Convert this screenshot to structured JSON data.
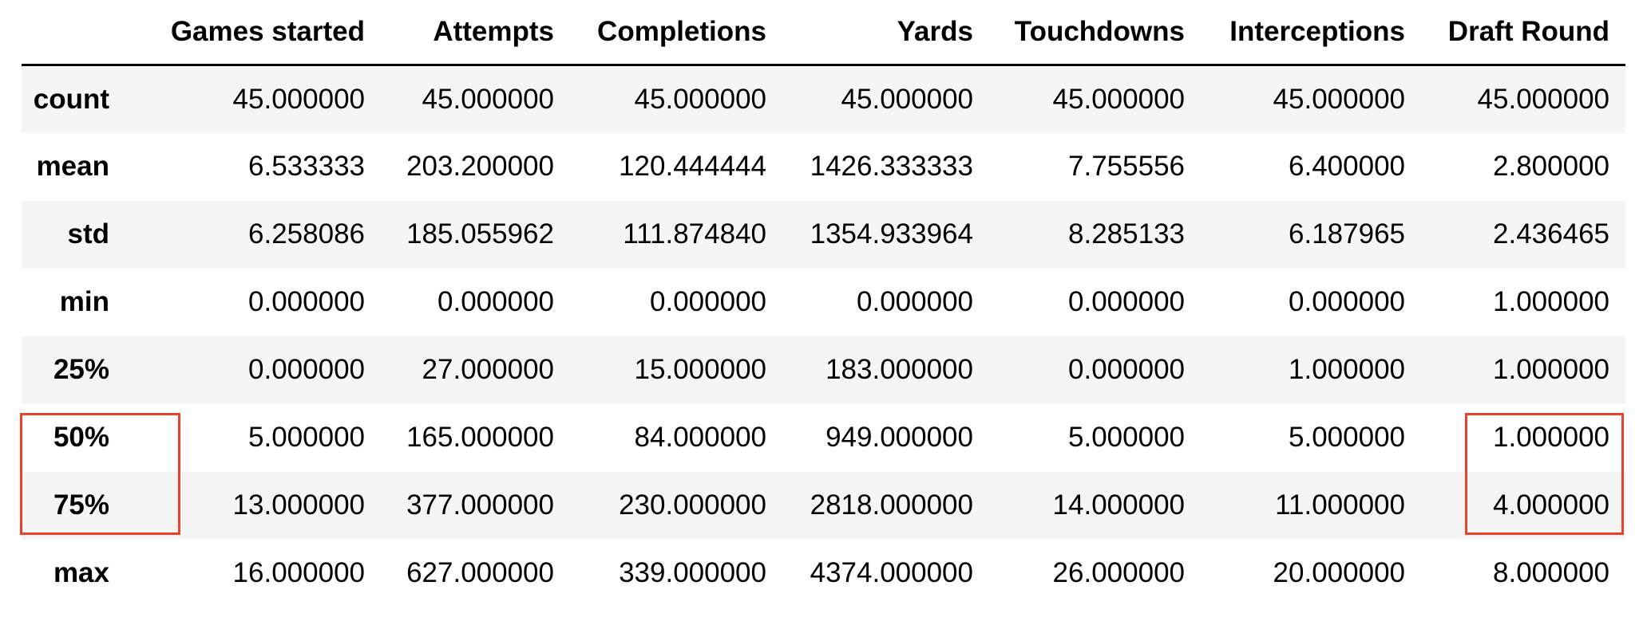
{
  "table": {
    "columns": [
      "Games started",
      "Attempts",
      "Completions",
      "Yards",
      "Touchdowns",
      "Interceptions",
      "Draft Round"
    ],
    "rows": [
      {
        "label": "count",
        "values": [
          "45.000000",
          "45.000000",
          "45.000000",
          "45.000000",
          "45.000000",
          "45.000000",
          "45.000000"
        ]
      },
      {
        "label": "mean",
        "values": [
          "6.533333",
          "203.200000",
          "120.444444",
          "1426.333333",
          "7.755556",
          "6.400000",
          "2.800000"
        ]
      },
      {
        "label": "std",
        "values": [
          "6.258086",
          "185.055962",
          "111.874840",
          "1354.933964",
          "8.285133",
          "6.187965",
          "2.436465"
        ]
      },
      {
        "label": "min",
        "values": [
          "0.000000",
          "0.000000",
          "0.000000",
          "0.000000",
          "0.000000",
          "0.000000",
          "1.000000"
        ]
      },
      {
        "label": "25%",
        "values": [
          "0.000000",
          "27.000000",
          "15.000000",
          "183.000000",
          "0.000000",
          "1.000000",
          "1.000000"
        ]
      },
      {
        "label": "50%",
        "values": [
          "5.000000",
          "165.000000",
          "84.000000",
          "949.000000",
          "5.000000",
          "5.000000",
          "1.000000"
        ]
      },
      {
        "label": "75%",
        "values": [
          "13.000000",
          "377.000000",
          "230.000000",
          "2818.000000",
          "14.000000",
          "11.000000",
          "4.000000"
        ]
      },
      {
        "label": "max",
        "values": [
          "16.000000",
          "627.000000",
          "339.000000",
          "4374.000000",
          "26.000000",
          "20.000000",
          "8.000000"
        ]
      }
    ]
  },
  "highlight": {
    "color": "#e8412c",
    "rows": [
      "50%",
      "75%"
    ],
    "column": "Draft Round"
  },
  "colors": {
    "stripe": "#f5f5f5",
    "text": "#000000",
    "header_rule": "#000000"
  }
}
